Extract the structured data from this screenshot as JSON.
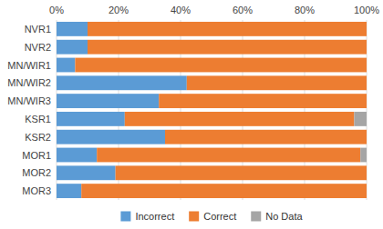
{
  "chart_data": {
    "type": "bar",
    "orientation": "horizontal",
    "stacked": true,
    "categories": [
      "NVR1",
      "NVR2",
      "MN/WIR1",
      "MN/WIR2",
      "MN/WIR3",
      "KSR1",
      "KSR2",
      "MOR1",
      "MOR2",
      "MOR3"
    ],
    "series": [
      {
        "name": "Incorrect",
        "color": "#5B9BD5",
        "values": [
          10,
          10,
          6,
          42,
          33,
          22,
          35,
          13,
          19,
          8
        ]
      },
      {
        "name": "Correct",
        "color": "#ED7D31",
        "values": [
          90,
          90,
          94,
          58,
          67,
          74,
          65,
          85,
          81,
          92
        ]
      },
      {
        "name": "No Data",
        "color": "#A5A5A5",
        "values": [
          0,
          0,
          0,
          0,
          0,
          4,
          0,
          2,
          0,
          0
        ]
      }
    ],
    "xlim": [
      0,
      100
    ],
    "xticks": [
      {
        "value": 0,
        "label": "0%"
      },
      {
        "value": 20,
        "label": "20%"
      },
      {
        "value": 40,
        "label": "40%"
      },
      {
        "value": 60,
        "label": "60%"
      },
      {
        "value": 80,
        "label": "80%"
      },
      {
        "value": 100,
        "label": "100%"
      }
    ],
    "grid": true,
    "legend": "bottom"
  }
}
